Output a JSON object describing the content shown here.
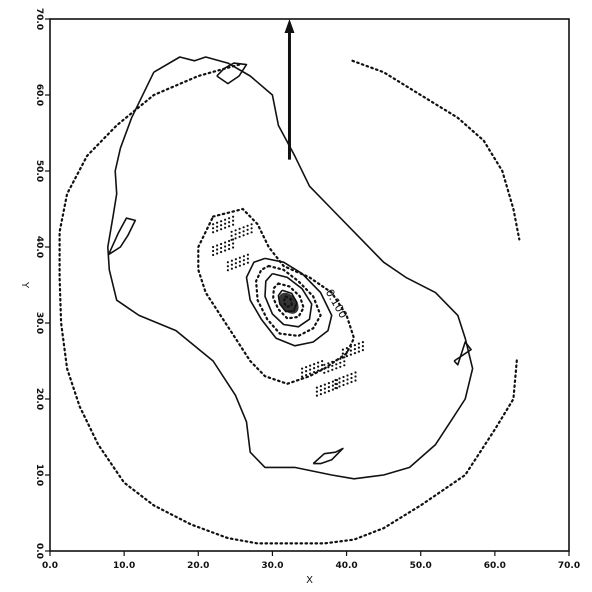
{
  "chart_data": {
    "type": "contour",
    "title": "",
    "xlabel": "X",
    "ylabel": "Y",
    "xlim": [
      0,
      70
    ],
    "ylim": [
      0,
      70
    ],
    "x_ticks": [
      "0.0",
      "10.0",
      "20.0",
      "30.0",
      "40.0",
      "50.0",
      "60.0",
      "70.0"
    ],
    "y_ticks": [
      "0.0",
      "10.0",
      "20.0",
      "30.0",
      "40.0",
      "50.0",
      "60.0",
      "70.0"
    ],
    "grid": false,
    "contour_annotation": "0.100",
    "arrow": {
      "from": [
        32.3,
        51.5
      ],
      "to": [
        32.3,
        70
      ]
    },
    "contours": [
      {
        "style": "dotted",
        "points": [
          [
            25.5,
            64
          ],
          [
            20,
            62.5
          ],
          [
            14,
            60
          ],
          [
            9,
            56
          ],
          [
            5,
            52
          ],
          [
            2.3,
            47
          ],
          [
            1.3,
            42
          ],
          [
            1.3,
            36
          ],
          [
            1.5,
            30
          ],
          [
            2.3,
            24
          ],
          [
            4,
            19
          ],
          [
            6.5,
            14
          ],
          [
            10,
            9
          ],
          [
            14,
            6
          ],
          [
            19,
            3.5
          ],
          [
            24,
            1.7
          ],
          [
            28,
            1
          ],
          [
            37,
            1
          ],
          [
            41,
            1.5
          ],
          [
            45,
            3
          ],
          [
            50,
            6
          ],
          [
            56,
            10
          ],
          [
            60,
            16
          ],
          [
            62.5,
            20
          ],
          [
            63,
            25.5
          ]
        ]
      },
      {
        "style": "dotted",
        "points": [
          [
            40.8,
            64.5
          ],
          [
            45,
            63
          ],
          [
            50,
            60
          ],
          [
            55,
            57
          ],
          [
            58.5,
            54
          ],
          [
            61,
            50
          ],
          [
            62.5,
            45
          ],
          [
            63.3,
            41
          ]
        ]
      },
      {
        "style": "solid",
        "points": [
          [
            14,
            63
          ],
          [
            17.5,
            65
          ],
          [
            19.5,
            64.5
          ],
          [
            21,
            65
          ],
          [
            24,
            64.2
          ],
          [
            27,
            62.5
          ],
          [
            30,
            60
          ],
          [
            30.8,
            56
          ],
          [
            33,
            52
          ],
          [
            35,
            48
          ],
          [
            38,
            45
          ],
          [
            42,
            41
          ],
          [
            45,
            38
          ],
          [
            48,
            36
          ],
          [
            52,
            34
          ],
          [
            55,
            31
          ],
          [
            56,
            28
          ],
          [
            57,
            24
          ],
          [
            56,
            20
          ],
          [
            54,
            17
          ],
          [
            52,
            14
          ],
          [
            48.5,
            11
          ],
          [
            45,
            10
          ],
          [
            41,
            9.5
          ],
          [
            38,
            10
          ],
          [
            33,
            11
          ],
          [
            29,
            11
          ],
          [
            27,
            13
          ],
          [
            26.5,
            17
          ],
          [
            25,
            20.5
          ],
          [
            22,
            25
          ],
          [
            17,
            29
          ],
          [
            12,
            31
          ],
          [
            9,
            33
          ],
          [
            8,
            37
          ],
          [
            7.8,
            40
          ],
          [
            8.5,
            44
          ],
          [
            9,
            47
          ],
          [
            8.8,
            50
          ],
          [
            9.5,
            53
          ],
          [
            11,
            57
          ],
          [
            14,
            63
          ]
        ]
      },
      {
        "style": "dotted",
        "points": [
          [
            22,
            44
          ],
          [
            26,
            45
          ],
          [
            28,
            43
          ],
          [
            29.5,
            40
          ],
          [
            31.5,
            37.5
          ],
          [
            35,
            36
          ],
          [
            38,
            34
          ],
          [
            40,
            31
          ],
          [
            41,
            28
          ],
          [
            40,
            26
          ],
          [
            37,
            24
          ],
          [
            35,
            23
          ],
          [
            32,
            22
          ],
          [
            29,
            23
          ],
          [
            27,
            25
          ],
          [
            25,
            28
          ],
          [
            23,
            31
          ],
          [
            21,
            34
          ],
          [
            20,
            37
          ],
          [
            20,
            40
          ],
          [
            22,
            44
          ]
        ]
      },
      {
        "style": "solid",
        "points": [
          [
            29,
            38.5
          ],
          [
            31.5,
            38
          ],
          [
            34,
            36.5
          ],
          [
            36.5,
            34
          ],
          [
            38,
            31
          ],
          [
            37.5,
            29
          ],
          [
            35.5,
            27.5
          ],
          [
            33,
            27
          ],
          [
            30.5,
            28
          ],
          [
            28.5,
            30.5
          ],
          [
            27,
            33
          ],
          [
            26.5,
            36
          ],
          [
            27.5,
            38
          ],
          [
            29,
            38.5
          ]
        ]
      },
      {
        "style": "dotted",
        "points": [
          [
            29.5,
            37.5
          ],
          [
            31.5,
            37
          ],
          [
            33.5,
            35.5
          ],
          [
            35.5,
            33.5
          ],
          [
            36.5,
            31
          ],
          [
            35.5,
            29.3
          ],
          [
            33.5,
            28.3
          ],
          [
            31,
            28.6
          ],
          [
            29.3,
            30.5
          ],
          [
            28,
            33
          ],
          [
            27.8,
            35.5
          ],
          [
            28.5,
            37
          ],
          [
            29.5,
            37.5
          ]
        ]
      },
      {
        "style": "solid",
        "points": [
          [
            30,
            36.5
          ],
          [
            32,
            36
          ],
          [
            34,
            34.5
          ],
          [
            35.3,
            32.5
          ],
          [
            35,
            30.5
          ],
          [
            33.5,
            29.5
          ],
          [
            31.5,
            29.8
          ],
          [
            30,
            31.2
          ],
          [
            29,
            33.5
          ],
          [
            29.1,
            35.5
          ],
          [
            30,
            36.5
          ]
        ]
      },
      {
        "style": "dotted",
        "points": [
          [
            30.8,
            35.2
          ],
          [
            32.3,
            34.8
          ],
          [
            33.7,
            33.5
          ],
          [
            34.2,
            32
          ],
          [
            33.5,
            30.8
          ],
          [
            32,
            30.6
          ],
          [
            30.8,
            31.8
          ],
          [
            30.1,
            33.3
          ],
          [
            30.2,
            34.6
          ],
          [
            30.8,
            35.2
          ]
        ]
      },
      {
        "style": "solid",
        "points": [
          [
            31.3,
            34.3
          ],
          [
            32.6,
            33.9
          ],
          [
            33.3,
            32.7
          ],
          [
            32.9,
            31.6
          ],
          [
            31.8,
            31.5
          ],
          [
            31,
            32.5
          ],
          [
            30.8,
            33.6
          ],
          [
            31.3,
            34.3
          ]
        ]
      },
      {
        "style": "dotted",
        "points": [
          [
            31.8,
            33.5
          ],
          [
            32.5,
            33.1
          ],
          [
            32.6,
            32.3
          ],
          [
            31.9,
            32.1
          ],
          [
            31.5,
            32.8
          ],
          [
            31.8,
            33.5
          ]
        ]
      }
    ],
    "wiggles": [
      [
        [
          7.9,
          39
        ],
        [
          9.5,
          40
        ],
        [
          10.5,
          41.5
        ],
        [
          11.5,
          43.5
        ],
        [
          10.3,
          43.8
        ],
        [
          9.2,
          41.8
        ],
        [
          7.9,
          39
        ]
      ],
      [
        [
          22.5,
          62.5
        ],
        [
          24,
          61.5
        ],
        [
          25.5,
          62.5
        ],
        [
          26.5,
          64
        ],
        [
          24.8,
          64.2
        ],
        [
          23.5,
          63.5
        ],
        [
          22.5,
          62.5
        ]
      ],
      [
        [
          54.5,
          25
        ],
        [
          56.8,
          26.5
        ],
        [
          56,
          27.5
        ],
        [
          55,
          24.5
        ],
        [
          54.5,
          25
        ]
      ],
      [
        [
          35.5,
          11.5
        ],
        [
          37,
          12.8
        ],
        [
          38.5,
          13
        ],
        [
          39.5,
          13.5
        ],
        [
          38,
          12
        ],
        [
          36.5,
          11.5
        ],
        [
          35.5,
          11.5
        ]
      ]
    ],
    "stipple": [
      [
        22,
        40
      ],
      [
        22,
        43
      ],
      [
        24.5,
        42
      ],
      [
        24,
        38
      ],
      [
        37,
        24.5
      ],
      [
        38.5,
        22.5
      ],
      [
        39.5,
        26.5
      ],
      [
        34,
        24
      ],
      [
        36,
        21.5
      ]
    ]
  }
}
